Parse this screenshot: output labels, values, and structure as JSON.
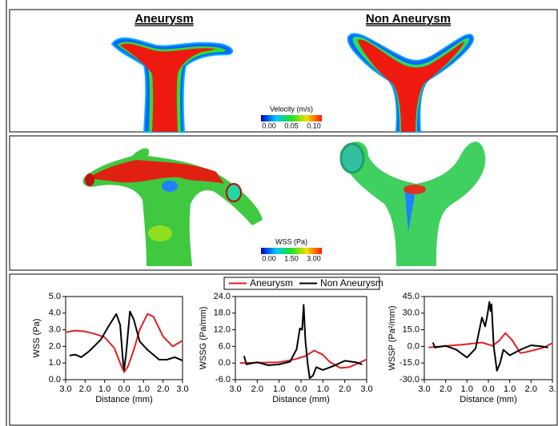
{
  "panels": {
    "titles": [
      "Aneurysm",
      "Non Aneurysm"
    ],
    "velocity_colorbar": {
      "label": "Velocity (m/s)",
      "ticks": [
        {
          "value": 0,
          "label": "0.00"
        },
        {
          "value": 0.05,
          "label": "0.05"
        },
        {
          "value": 0.1,
          "label": "0.10"
        }
      ],
      "lim": [
        0,
        0.1
      ]
    },
    "wss_colorbar": {
      "label": "WSS (Pa)",
      "ticks": [
        {
          "value": 0,
          "label": "0.00"
        },
        {
          "value": 1.5,
          "label": "1.50"
        },
        {
          "value": 3,
          "label": "3.00"
        }
      ],
      "lim": [
        0,
        3
      ]
    }
  },
  "chart_data": [
    {
      "type": "line",
      "x_label": "Distance (mm)",
      "y_label": "WSS (Pa)",
      "xlim": [
        -3,
        3
      ],
      "xticks": [
        {
          "value": -3,
          "label": "3.0"
        },
        {
          "value": -2,
          "label": "2.0"
        },
        {
          "value": -1,
          "label": "1.0"
        },
        {
          "value": 0,
          "label": "0.0"
        },
        {
          "value": 1,
          "label": "1.0"
        },
        {
          "value": 2,
          "label": "2.0"
        },
        {
          "value": 3,
          "label": "3.0"
        }
      ],
      "ylim": [
        0,
        5
      ],
      "yticks": [
        {
          "value": 0,
          "label": "0.0"
        },
        {
          "value": 1,
          "label": "1.0"
        },
        {
          "value": 2,
          "label": "2.0"
        },
        {
          "value": 3,
          "label": "3.0"
        },
        {
          "value": 4,
          "label": "4.0"
        },
        {
          "value": 5,
          "label": "5.0"
        }
      ],
      "series": [
        {
          "name": "Aneurysm",
          "color": "#e02020",
          "x": [
            -3,
            -2.5,
            -2,
            -1.5,
            -1,
            -0.5,
            -0.2,
            0,
            0.2,
            0.5,
            0.8,
            1.2,
            1.5,
            2,
            2.5,
            3
          ],
          "values": [
            2.85,
            2.95,
            2.9,
            2.75,
            2.55,
            1.9,
            1.0,
            0.45,
            0.8,
            1.8,
            3.0,
            3.95,
            3.8,
            2.6,
            2.0,
            2.35
          ]
        },
        {
          "name": "Non Aneurysm",
          "color": "#000000",
          "x": [
            -2.8,
            -2.5,
            -2.2,
            -1.8,
            -1.2,
            -0.8,
            -0.4,
            -0.2,
            -0.05,
            0,
            0.1,
            0.3,
            0.5,
            0.8,
            1.2,
            1.8,
            2.2,
            2.6,
            3
          ],
          "values": [
            1.45,
            1.5,
            1.35,
            1.7,
            2.4,
            3.2,
            3.95,
            3.3,
            1.0,
            0.6,
            1.5,
            4.1,
            3.6,
            2.3,
            1.8,
            1.2,
            1.2,
            1.35,
            1.15
          ]
        }
      ]
    },
    {
      "type": "line",
      "x_label": "Distance (mm)",
      "y_label": "WSSG (Pa/mm)",
      "xlim": [
        -3,
        3
      ],
      "xticks": [
        {
          "value": -3,
          "label": "3.0"
        },
        {
          "value": -2,
          "label": "2.0"
        },
        {
          "value": -1,
          "label": "1.0"
        },
        {
          "value": 0,
          "label": "0.0"
        },
        {
          "value": 1,
          "label": "1.0"
        },
        {
          "value": 2,
          "label": "2.0"
        },
        {
          "value": 3,
          "label": "3.0"
        }
      ],
      "ylim": [
        -6,
        24
      ],
      "yticks": [
        {
          "value": -6,
          "label": "-6.0"
        },
        {
          "value": 0,
          "label": "0.0"
        },
        {
          "value": 6,
          "label": "6.0"
        },
        {
          "value": 12,
          "label": "12.0"
        },
        {
          "value": 18,
          "label": "18.0"
        },
        {
          "value": 24,
          "label": "24.0"
        }
      ],
      "series": [
        {
          "name": "Aneurysm",
          "color": "#e02020",
          "x": [
            -2.8,
            -1,
            -0.3,
            0.2,
            0.6,
            1,
            1.3,
            1.8,
            2.2,
            2.7,
            3
          ],
          "values": [
            0.0,
            0.3,
            1.3,
            2.5,
            4.5,
            3.0,
            0.5,
            -1.8,
            -1.5,
            0.2,
            1.3
          ]
        },
        {
          "name": "Non Aneurysm",
          "color": "#000000",
          "x": [
            -2.6,
            -2.5,
            -2,
            -1.5,
            -1,
            -0.5,
            -0.2,
            -0.05,
            0.05,
            0.12,
            0.2,
            0.3,
            0.4,
            0.55,
            0.7,
            1,
            1.5,
            2,
            2.5,
            2.8
          ],
          "values": [
            2.5,
            -0.5,
            0.3,
            -0.8,
            -0.5,
            0.5,
            5,
            12.5,
            12,
            21,
            8,
            0,
            -5.5,
            -4.5,
            -1.5,
            -2.5,
            -1,
            0.8,
            0.3,
            -0.5
          ]
        }
      ]
    },
    {
      "type": "line",
      "x_label": "Distance (mm)",
      "y_label": "WSSP (Pa²/mm)",
      "xlim": [
        -3,
        3
      ],
      "xticks": [
        {
          "value": -3,
          "label": "3.0"
        },
        {
          "value": -2,
          "label": "2.0"
        },
        {
          "value": -1,
          "label": "1.0"
        },
        {
          "value": 0,
          "label": "0.0"
        },
        {
          "value": 1,
          "label": "1.0"
        },
        {
          "value": 2,
          "label": "2.0"
        },
        {
          "value": 3,
          "label": "3."
        }
      ],
      "ylim": [
        -30,
        45
      ],
      "yticks": [
        {
          "value": -30,
          "label": "-30.0"
        },
        {
          "value": -15,
          "label": "-15.0"
        },
        {
          "value": 0,
          "label": "0.0"
        },
        {
          "value": 15,
          "label": "15.0"
        },
        {
          "value": 30,
          "label": "30.0"
        },
        {
          "value": 45,
          "label": "45.0"
        }
      ],
      "series": [
        {
          "name": "Aneurysm",
          "color": "#e02020",
          "x": [
            -2.8,
            -1,
            -0.3,
            0.2,
            0.5,
            0.8,
            1.1,
            1.5,
            1.8,
            2.2,
            2.6,
            3
          ],
          "values": [
            -1,
            2,
            3.5,
            0.5,
            5,
            12,
            6,
            -6,
            -5,
            -3,
            -1,
            3
          ]
        },
        {
          "name": "Non Aneurysm",
          "color": "#000000",
          "x": [
            -2.6,
            -2.5,
            -2,
            -1.5,
            -1,
            -0.6,
            -0.3,
            -0.15,
            -0.05,
            0.05,
            0.1,
            0.15,
            0.25,
            0.4,
            0.55,
            0.7,
            1,
            1.5,
            2,
            2.5,
            2.8
          ],
          "values": [
            3.5,
            -1,
            0.5,
            -3,
            -10,
            -2,
            26,
            18,
            28,
            40,
            32,
            38,
            0,
            -22,
            -15,
            -3,
            -8,
            -3,
            1,
            0,
            -1
          ]
        }
      ]
    }
  ]
}
